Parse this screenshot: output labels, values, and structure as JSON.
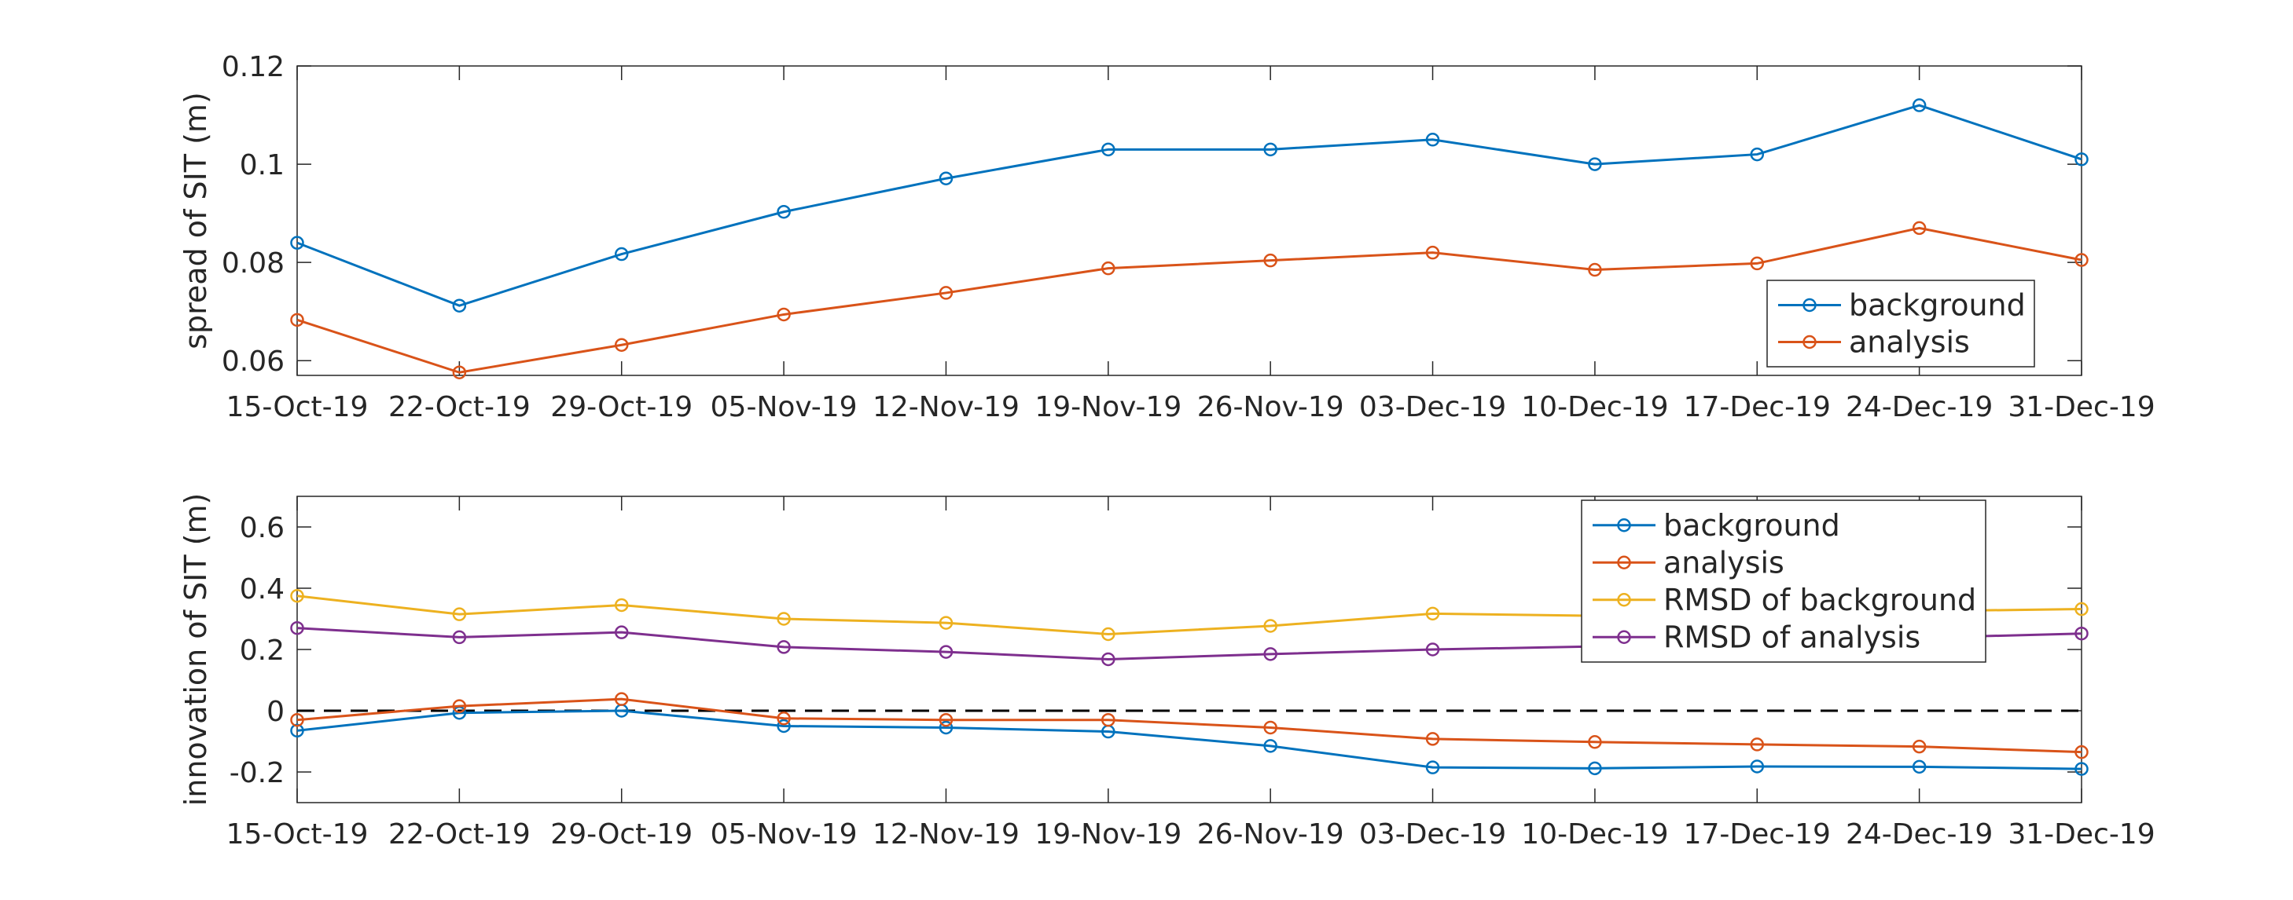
{
  "chart_data": [
    {
      "type": "line",
      "ylabel": "spread of SIT (m)",
      "x": [
        "15-Oct-19",
        "22-Oct-19",
        "29-Oct-19",
        "05-Nov-19",
        "12-Nov-19",
        "19-Nov-19",
        "26-Nov-19",
        "03-Dec-19",
        "10-Dec-19",
        "17-Dec-19",
        "24-Dec-19",
        "31-Dec-19"
      ],
      "ylim": [
        0.057,
        0.12
      ],
      "yticks": [
        0.06,
        0.08,
        0.1,
        0.12
      ],
      "ytick_labels": [
        "0.06",
        "0.08",
        "0.1",
        "0.12"
      ],
      "legend_position": "bottom-right",
      "series": [
        {
          "name": "background",
          "color": "#0072BD",
          "values": [
            0.084,
            0.0712,
            0.0817,
            0.0903,
            0.0971,
            0.103,
            0.103,
            0.105,
            0.1,
            0.102,
            0.112,
            0.101
          ]
        },
        {
          "name": "analysis",
          "color": "#D95319",
          "values": [
            0.0683,
            0.0576,
            0.0632,
            0.0694,
            0.0738,
            0.0788,
            0.0804,
            0.082,
            0.0785,
            0.0798,
            0.087,
            0.0805
          ]
        }
      ]
    },
    {
      "type": "line",
      "ylabel": "innovation of SIT (m)",
      "x": [
        "15-Oct-19",
        "22-Oct-19",
        "29-Oct-19",
        "05-Nov-19",
        "12-Nov-19",
        "19-Nov-19",
        "26-Nov-19",
        "03-Dec-19",
        "10-Dec-19",
        "17-Dec-19",
        "24-Dec-19",
        "31-Dec-19"
      ],
      "ylim": [
        -0.3,
        0.7
      ],
      "yticks": [
        -0.2,
        0,
        0.2,
        0.4,
        0.6
      ],
      "ytick_labels": [
        "-0.2",
        "0",
        "0.2",
        "0.4",
        "0.6"
      ],
      "reference_line": {
        "y": 0,
        "style": "dashed",
        "color": "#000000"
      },
      "legend_position": "top-right",
      "series": [
        {
          "name": "background",
          "color": "#0072BD",
          "values": [
            -0.065,
            -0.007,
            0.0,
            -0.05,
            -0.055,
            -0.068,
            -0.115,
            -0.185,
            -0.188,
            -0.182,
            -0.183,
            -0.19
          ]
        },
        {
          "name": "analysis",
          "color": "#D95319",
          "values": [
            -0.03,
            0.015,
            0.038,
            -0.025,
            -0.03,
            -0.03,
            -0.055,
            -0.092,
            -0.102,
            -0.11,
            -0.117,
            -0.135
          ]
        },
        {
          "name": "RMSD of background",
          "color": "#EDB120",
          "values": [
            0.375,
            0.315,
            0.345,
            0.3,
            0.287,
            0.25,
            0.277,
            0.317,
            0.31,
            0.32,
            0.325,
            0.332
          ]
        },
        {
          "name": "RMSD of analysis",
          "color": "#7E2F8E",
          "values": [
            0.27,
            0.24,
            0.256,
            0.208,
            0.192,
            0.168,
            0.185,
            0.2,
            0.21,
            0.218,
            0.238,
            0.252
          ]
        }
      ]
    }
  ]
}
